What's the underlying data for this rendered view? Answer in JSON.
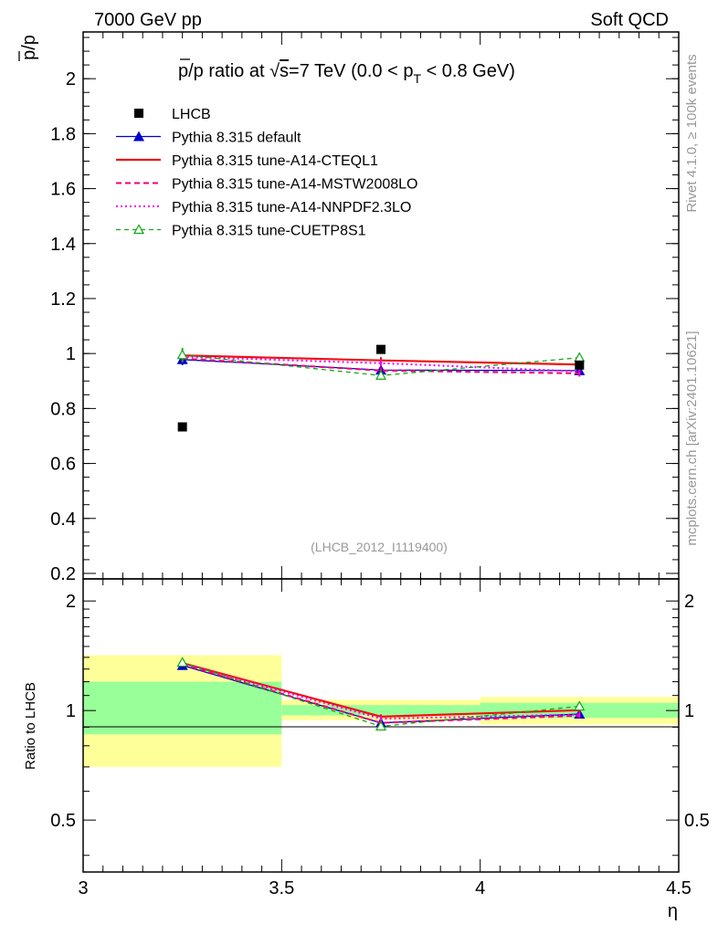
{
  "header": {
    "left": "7000 GeV pp",
    "right": "Soft QCD"
  },
  "side_text": {
    "rivet": "Rivet 4.1.0, ≥ 100k events",
    "mcplots": "mcplots.cern.ch [arXiv:2401.10621]"
  },
  "chart_data": [
    {
      "type": "scatter",
      "panel": "main",
      "title": "p̅/p ratio at √s=7 TeV (0.0 < p_T < 0.8 GeV)",
      "title_prefix": "p/p ratio at ",
      "title_sqrt": "√",
      "title_s": "s",
      "title_mid": "=7 TeV (0.0 < p",
      "title_sub": "T",
      "title_end": " < 0.8 GeV)",
      "ylabel": "p/p",
      "xlim": [
        3.0,
        4.5
      ],
      "ylim": [
        0.18,
        2.17
      ],
      "yticks": [
        0.2,
        0.4,
        0.6,
        0.8,
        1,
        1.2,
        1.4,
        1.6,
        1.8,
        2
      ],
      "ytick_labels": [
        "0.2",
        "0.4",
        "0.6",
        "0.8",
        "1",
        "1.2",
        "1.4",
        "1.6",
        "1.8",
        "2"
      ],
      "x": [
        3.25,
        3.75,
        4.25
      ],
      "analysis_label": "(LHCB_2012_I1119400)",
      "series": [
        {
          "name": "LHCB",
          "style": "data",
          "color": "#000000",
          "values": [
            0.733,
            1.015,
            0.958
          ]
        },
        {
          "name": "Pythia 8.315 default",
          "style": "solid-triangle",
          "color": "#0000cc",
          "values": [
            0.978,
            0.94,
            0.938
          ],
          "errors": [
            0.02,
            0.012,
            0.015
          ]
        },
        {
          "name": "Pythia 8.315 tune-A14-CTEQL1",
          "style": "solid-thick",
          "color": "#ee1111",
          "values": [
            0.993,
            0.975,
            0.96
          ],
          "errors": [
            0.012,
            0.012,
            0.012
          ]
        },
        {
          "name": "Pythia 8.315 tune-A14-MSTW2008LO",
          "style": "dashed",
          "color": "#ee0077",
          "values": [
            0.982,
            0.938,
            0.928
          ],
          "errors": [
            0.015,
            0.012,
            0.012
          ]
        },
        {
          "name": "Pythia 8.315 tune-A14-NNPDF2.3LO",
          "style": "dotted",
          "color": "#ee00ee",
          "values": [
            0.988,
            0.965,
            0.935
          ],
          "errors": [
            0.015,
            0.012,
            0.012
          ]
        },
        {
          "name": "Pythia 8.315 tune-CUETP8S1",
          "style": "dashed-open-triangle",
          "color": "#11aa11",
          "values": [
            0.995,
            0.92,
            0.985
          ],
          "errors": [
            0.025,
            0.015,
            0.015
          ]
        }
      ]
    },
    {
      "type": "line",
      "panel": "ratio",
      "ylabel": "Ratio to LHCB",
      "xlabel": "η",
      "xlim": [
        3.0,
        4.5
      ],
      "ylim": [
        0.36,
        2.3
      ],
      "yscale": "log",
      "xticks": [
        3,
        3.5,
        4,
        4.5
      ],
      "xtick_labels": [
        "3",
        "3.5",
        "4",
        "4.5"
      ],
      "yticks": [
        0.5,
        1,
        2
      ],
      "ytick_labels": [
        "0.5",
        "1",
        "2"
      ],
      "x": [
        3.25,
        3.75,
        4.25
      ],
      "bands": [
        {
          "xlo": 3.0,
          "xhi": 3.5,
          "yellow": [
            0.7,
            1.42
          ],
          "green": [
            0.86,
            1.2
          ]
        },
        {
          "xlo": 3.5,
          "xhi": 4.0,
          "yellow": [
            0.94,
            1.07
          ],
          "green": [
            0.97,
            1.035
          ]
        },
        {
          "xlo": 4.0,
          "xhi": 4.5,
          "yellow": [
            0.915,
            1.09
          ],
          "green": [
            0.955,
            1.05
          ]
        }
      ],
      "series": [
        {
          "name": "Pythia 8.315 default",
          "values": [
            1.33,
            0.925,
            0.978
          ]
        },
        {
          "name": "Pythia 8.315 tune-A14-CTEQL1",
          "values": [
            1.35,
            0.962,
            1.002
          ]
        },
        {
          "name": "Pythia 8.315 tune-A14-MSTW2008LO",
          "values": [
            1.34,
            0.925,
            0.968
          ]
        },
        {
          "name": "Pythia 8.315 tune-A14-NNPDF2.3LO",
          "values": [
            1.345,
            0.95,
            0.975
          ]
        },
        {
          "name": "Pythia 8.315 tune-CUETP8S1",
          "values": [
            1.355,
            0.905,
            1.027
          ]
        }
      ]
    }
  ]
}
